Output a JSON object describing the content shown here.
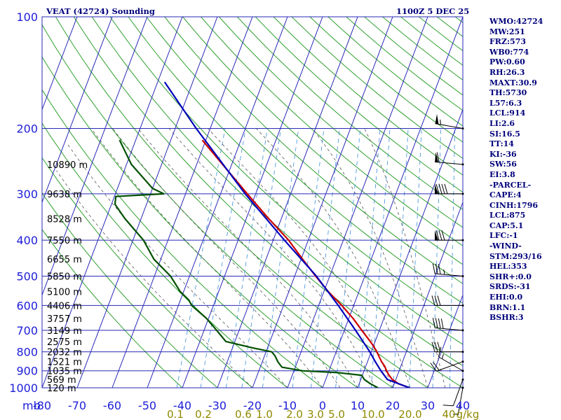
{
  "chart_data": {
    "type": "line",
    "kind": "Skew-T log-P sounding",
    "title": "VEAT (42724) Sounding",
    "valid_time": "1100Z  5 DEC 25",
    "y_axis": {
      "label": "mb",
      "scale": "log",
      "range": [
        1000,
        100
      ],
      "ticks": [
        100,
        200,
        300,
        400,
        500,
        600,
        700,
        800,
        900,
        1000
      ]
    },
    "x_axis": {
      "range": [
        -80,
        40
      ],
      "ticks": [
        -80,
        -70,
        -60,
        -50,
        -40,
        -30,
        -20,
        -10,
        0,
        10,
        20,
        30,
        40
      ],
      "skew_degC": 40
    },
    "mixing_ratio_labels": [
      "0.1",
      "0.2",
      "0.6",
      "1.0",
      "2.0",
      "3.0",
      "5.0",
      "10.0",
      "20.0",
      "40",
      "g/kg"
    ],
    "height_labels": [
      {
        "p": 250,
        "text": "10890 m"
      },
      {
        "p": 300,
        "text": "9638 m"
      },
      {
        "p": 350,
        "text": "8528 m"
      },
      {
        "p": 400,
        "text": "7550 m"
      },
      {
        "p": 450,
        "text": "6655 m"
      },
      {
        "p": 500,
        "text": "5850 m"
      },
      {
        "p": 550,
        "text": "5100 m"
      },
      {
        "p": 600,
        "text": "4406 m"
      },
      {
        "p": 650,
        "text": "3757 m"
      },
      {
        "p": 700,
        "text": "3149 m"
      },
      {
        "p": 750,
        "text": "2575 m"
      },
      {
        "p": 800,
        "text": "2032 m"
      },
      {
        "p": 850,
        "text": "1521 m"
      },
      {
        "p": 900,
        "text": "1035 m"
      },
      {
        "p": 950,
        "text": "569 m"
      },
      {
        "p": 1000,
        "text": "120 m"
      }
    ],
    "series": [
      {
        "name": "Temperature",
        "color": "#cc0000",
        "points": [
          [
            1000,
            24.8
          ],
          [
            975,
            21.2
          ],
          [
            950,
            19.0
          ],
          [
            925,
            17.6
          ],
          [
            900,
            16.4
          ],
          [
            875,
            15.4
          ],
          [
            850,
            14.0
          ],
          [
            825,
            12.8
          ],
          [
            800,
            11.6
          ],
          [
            775,
            10.2
          ],
          [
            750,
            8.6
          ],
          [
            700,
            5.0
          ],
          [
            650,
            1.2
          ],
          [
            600,
            -3.4
          ],
          [
            550,
            -8.8
          ],
          [
            500,
            -14.0
          ],
          [
            450,
            -19.6
          ],
          [
            400,
            -25.6
          ],
          [
            350,
            -33.6
          ],
          [
            300,
            -42.4
          ],
          [
            250,
            -52.6
          ],
          [
            215,
            -61.0
          ]
        ]
      },
      {
        "name": "Dewpoint",
        "color": "#005000",
        "points": [
          [
            1000,
            15.8
          ],
          [
            975,
            13.2
          ],
          [
            950,
            11.0
          ],
          [
            925,
            9.8
          ],
          [
            910,
            2.6
          ],
          [
            900,
            -7.6
          ],
          [
            880,
            -13.8
          ],
          [
            850,
            -15.6
          ],
          [
            820,
            -17.0
          ],
          [
            800,
            -18.4
          ],
          [
            780,
            -24.4
          ],
          [
            750,
            -32.6
          ],
          [
            700,
            -36.4
          ],
          [
            650,
            -40.6
          ],
          [
            600,
            -46.2
          ],
          [
            580,
            -47.6
          ],
          [
            550,
            -51.0
          ],
          [
            500,
            -55.4
          ],
          [
            450,
            -62.0
          ],
          [
            400,
            -67.0
          ],
          [
            350,
            -74.6
          ],
          [
            320,
            -79.0
          ],
          [
            305,
            -79.6
          ],
          [
            300,
            -66.2
          ],
          [
            290,
            -70.0
          ],
          [
            250,
            -78.6
          ],
          [
            215,
            -84.6
          ]
        ]
      },
      {
        "name": "Parcel",
        "color": "#0000bb",
        "points": [
          [
            1000,
            24.8
          ],
          [
            950,
            17.6
          ],
          [
            900,
            14.8
          ],
          [
            850,
            12.2
          ],
          [
            800,
            9.6
          ],
          [
            700,
            3.2
          ],
          [
            600,
            -4.4
          ],
          [
            500,
            -13.8
          ],
          [
            400,
            -26.8
          ],
          [
            300,
            -43.0
          ],
          [
            200,
            -64.0
          ],
          [
            150,
            -78.0
          ]
        ]
      }
    ],
    "winds": [
      {
        "p": 1000,
        "dir": 190,
        "spd": 5
      },
      {
        "p": 950,
        "dir": 200,
        "spd": 10
      },
      {
        "p": 900,
        "dir": 300,
        "spd": 15
      },
      {
        "p": 850,
        "dir": 250,
        "spd": 20
      },
      {
        "p": 800,
        "dir": 270,
        "spd": 30
      },
      {
        "p": 700,
        "dir": 275,
        "spd": 40
      },
      {
        "p": 600,
        "dir": 270,
        "spd": 30
      },
      {
        "p": 500,
        "dir": 275,
        "spd": 35
      },
      {
        "p": 400,
        "dir": 270,
        "spd": 80
      },
      {
        "p": 300,
        "dir": 270,
        "spd": 90
      },
      {
        "p": 250,
        "dir": 275,
        "spd": 60
      },
      {
        "p": 200,
        "dir": 280,
        "spd": 55
      }
    ]
  },
  "indices": [
    "WMO:42724",
    "MW:251",
    "FRZ:573",
    "WB0:774",
    "PW:0.60",
    "RH:26.3",
    "MAXT:30.9",
    "TH:5730",
    "L57:6.3",
    "LCL:914",
    "LI:2.6",
    "SI:16.5",
    "TT:14",
    "KI:-36",
    "SW:56",
    "EI:3.8",
    "-PARCEL-",
    "CAPE:4",
    "CINH:1796",
    "LCL:875",
    "CAP:5.1",
    "LFC:-1",
    "-WIND-",
    "STM:293/16",
    "HEL:353",
    "SHR+:0.0",
    "SRDS:-31",
    "EHI:0.0",
    "BRN:1.1",
    "BSHR:3"
  ],
  "colors": {
    "grid": "#2a2ab8",
    "axis_text": "#1d1dd8",
    "ratio_text": "#908a00",
    "dry_adiabat": "#2ea02e",
    "moist_adiabat": "#555555",
    "mixing_ratio": "#3a8fd8",
    "title": "#00007a"
  }
}
